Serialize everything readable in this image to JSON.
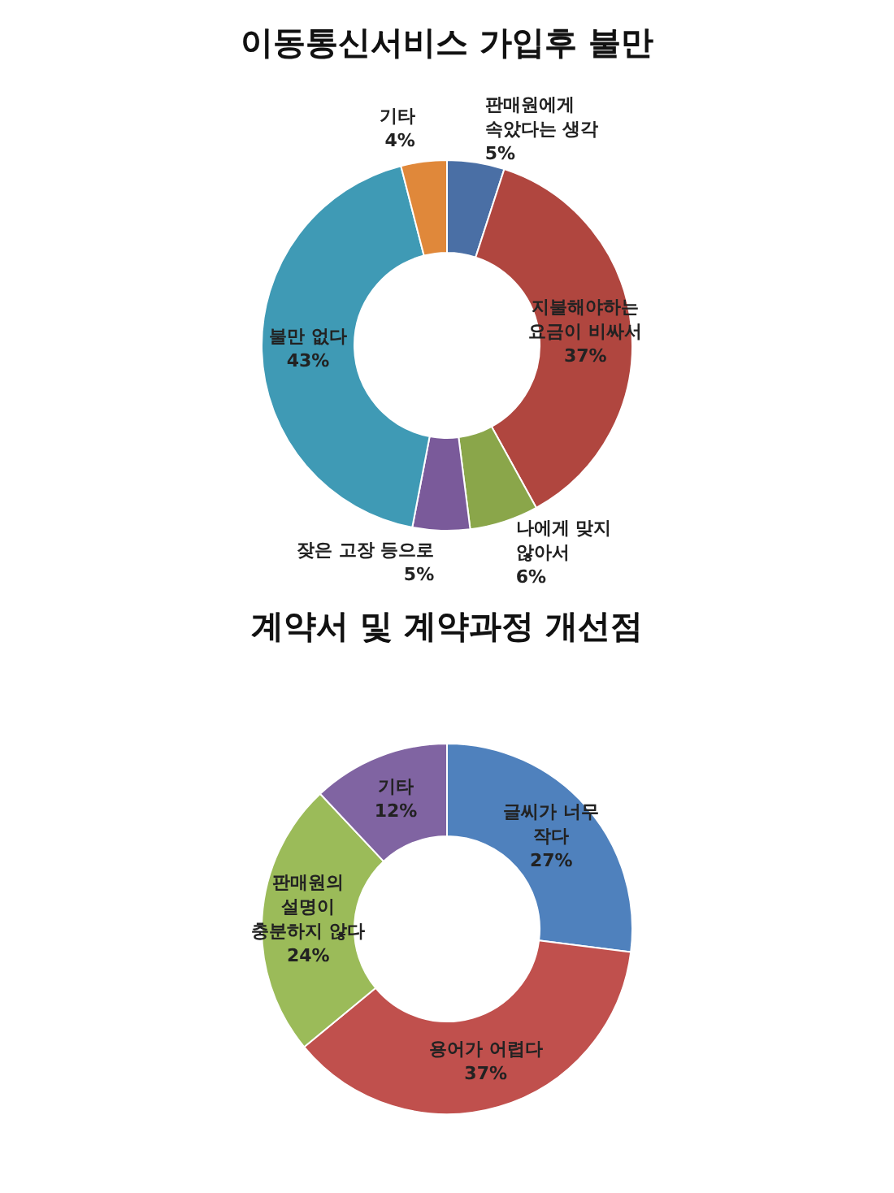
{
  "chart_data": [
    {
      "type": "donut",
      "title": "이동통신서비스 가입후 불만",
      "categories": [
        "판매원에게 속았다는 생각",
        "지불해야하는 요금이 비싸서",
        "나에게 맞지 않아서",
        "잦은 고장 등으로",
        "불만 없다",
        "기타"
      ],
      "values": [
        5,
        37,
        6,
        5,
        43,
        4
      ],
      "value_labels": [
        "5%",
        "37%",
        "6%",
        "5%",
        "43%",
        "4%"
      ],
      "colors": [
        "#4a6fa5",
        "#b0463f",
        "#8aa64a",
        "#7a5a9a",
        "#3f9ab5",
        "#e0883a"
      ],
      "legend": false
    },
    {
      "type": "donut",
      "title": "계약서 및 계약과정 개선점",
      "categories": [
        "글씨가 너무 작다",
        "용어가 어렵다",
        "판매원의 설명이 충분하지 않다",
        "기타"
      ],
      "values": [
        27,
        37,
        24,
        12
      ],
      "value_labels": [
        "27%",
        "37%",
        "24%",
        "12%"
      ],
      "colors": [
        "#4f81bd",
        "#c0504d",
        "#9bbb59",
        "#8064a2"
      ],
      "legend": false
    }
  ]
}
